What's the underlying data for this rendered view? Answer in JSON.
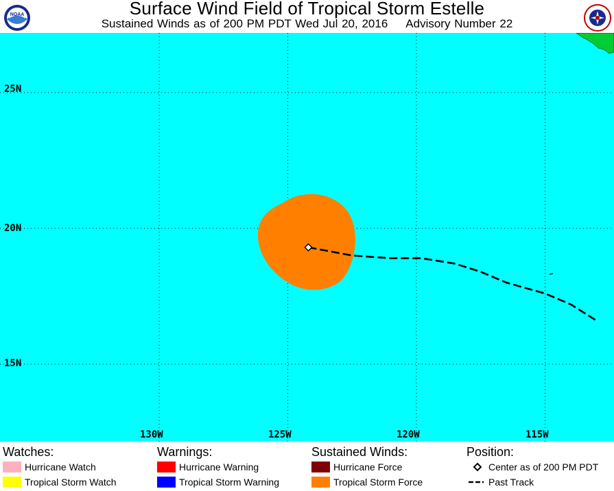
{
  "header": {
    "title": "Surface Wind Field of Tropical Storm Estelle",
    "subtitle_left": "Sustained Winds as of 200 PM PDT Wed Jul 20, 2016",
    "subtitle_right": "Advisory Number 22",
    "logos": [
      "NOAA",
      "National Weather Service"
    ]
  },
  "map": {
    "ocean_color": "#00ffff",
    "land_color": "#00cc33",
    "storm_wind_color": "#ff8000",
    "lat_labels": [
      "25N",
      "20N",
      "15N"
    ],
    "lon_labels": [
      "130W",
      "125W",
      "120W",
      "115W"
    ],
    "storm_center": {
      "lat": 19.3,
      "lon": 124.2
    },
    "past_track": [
      {
        "lon": 124.2,
        "lat": 19.3
      },
      {
        "lon": 122.5,
        "lat": 19.0
      },
      {
        "lon": 121.0,
        "lat": 18.9
      },
      {
        "lon": 119.8,
        "lat": 18.9
      },
      {
        "lon": 118.5,
        "lat": 18.7
      },
      {
        "lon": 117.5,
        "lat": 18.4
      },
      {
        "lon": 116.5,
        "lat": 18.0
      },
      {
        "lon": 115.0,
        "lat": 17.6
      },
      {
        "lon": 114.0,
        "lat": 17.2
      },
      {
        "lon": 113.0,
        "lat": 16.6
      }
    ]
  },
  "legend": {
    "watches": {
      "heading": "Watches:",
      "items": [
        {
          "label": "Hurricane Watch",
          "color": "#ffb0c0"
        },
        {
          "label": "Tropical Storm Watch",
          "color": "#ffff00"
        }
      ]
    },
    "warnings": {
      "heading": "Warnings:",
      "items": [
        {
          "label": "Hurricane Warning",
          "color": "#ff0000"
        },
        {
          "label": "Tropical Storm Warning",
          "color": "#0000ff"
        }
      ]
    },
    "winds": {
      "heading": "Sustained Winds:",
      "items": [
        {
          "label": "Hurricane Force",
          "color": "#800000"
        },
        {
          "label": "Tropical Storm Force",
          "color": "#ff8000"
        }
      ]
    },
    "position": {
      "heading": "Position:",
      "center_label": "Center as of 200 PM PDT",
      "track_label": "Past Track"
    }
  }
}
